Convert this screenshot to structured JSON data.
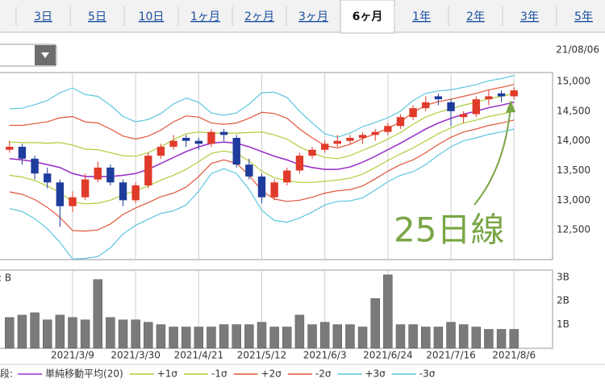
{
  "tabs": [
    "3日",
    "5日",
    "10日",
    "1ヶ月",
    "2ヶ月",
    "3ヶ月",
    "6ヶ月",
    "1年",
    "2年",
    "3年",
    "5年"
  ],
  "selected_tab": 6,
  "date": "21/08/06",
  "annotation": "25日線",
  "legend_prefix": "段:",
  "chart_data": [
    {
      "type": "candlestick",
      "categories": [
        null,
        null,
        null,
        null,
        null,
        "2021/3/9",
        null,
        null,
        null,
        null,
        "2021/3/30",
        null,
        null,
        null,
        null,
        "2021/4/21",
        null,
        null,
        null,
        null,
        "2021/5/12",
        null,
        null,
        null,
        null,
        "2021/6/3",
        null,
        null,
        null,
        null,
        "2021/6/24",
        null,
        null,
        null,
        null,
        "2021/7/16",
        null,
        null,
        null,
        null,
        "2021/8/6"
      ],
      "open": [
        13850,
        13900,
        13700,
        13450,
        13300,
        12900,
        13050,
        13350,
        13550,
        13300,
        13000,
        13250,
        13750,
        13900,
        14050,
        14000,
        13950,
        14150,
        14050,
        13600,
        13400,
        13050,
        13300,
        13500,
        13750,
        13850,
        13950,
        14000,
        14050,
        14100,
        14150,
        14250,
        14400,
        14550,
        14750,
        14650,
        14400,
        14450,
        14700,
        14800,
        14750
      ],
      "high": [
        14000,
        13950,
        13750,
        13550,
        13350,
        13150,
        13450,
        13650,
        13600,
        13350,
        13300,
        13800,
        13950,
        14100,
        14100,
        14050,
        14200,
        14200,
        14100,
        13700,
        13450,
        13350,
        13550,
        13800,
        13900,
        14000,
        14100,
        14100,
        14150,
        14200,
        14300,
        14450,
        14600,
        14750,
        14800,
        14700,
        14500,
        14750,
        14850,
        14850,
        14900
      ],
      "low": [
        13800,
        13600,
        13350,
        13200,
        12550,
        12800,
        13000,
        13300,
        13250,
        12900,
        12950,
        13200,
        13700,
        13850,
        13900,
        13850,
        13900,
        14000,
        13550,
        13350,
        12950,
        13000,
        13250,
        13450,
        13700,
        13800,
        13900,
        13950,
        13950,
        14000,
        14100,
        14200,
        14350,
        14500,
        14600,
        14250,
        14300,
        14400,
        14600,
        14650,
        14700
      ],
      "close": [
        13900,
        13700,
        13450,
        13300,
        12900,
        13050,
        13350,
        13550,
        13300,
        13000,
        13250,
        13750,
        13900,
        14000,
        14000,
        13950,
        14150,
        14100,
        13600,
        13400,
        13050,
        13300,
        13500,
        13750,
        13850,
        13950,
        14000,
        14050,
        14100,
        14150,
        14250,
        14400,
        14550,
        14650,
        14700,
        14500,
        14450,
        14700,
        14750,
        14750,
        14850
      ],
      "up_color": "#e03a2a",
      "down_color": "#1e3c9c",
      "series": [
        {
          "name": "単純移動平均(20)",
          "color": "#9b34c8",
          "values": [
            13700,
            13680,
            13650,
            13600,
            13550,
            13450,
            13400,
            13400,
            13400,
            13420,
            13450,
            13520,
            13620,
            13720,
            13820,
            13900,
            13960,
            13980,
            13960,
            13900,
            13820,
            13740,
            13680,
            13600,
            13550,
            13520,
            13520,
            13560,
            13640,
            13740,
            13850,
            13960,
            14080,
            14200,
            14300,
            14380,
            14450,
            14500,
            14560,
            14600,
            14650
          ]
        },
        {
          "name": "+1σ",
          "color": "#b2cc3a",
          "values": [
            13980,
            13970,
            13970,
            13960,
            13970,
            13930,
            13860,
            13850,
            13800,
            13750,
            13740,
            13800,
            13900,
            14020,
            14120,
            14150,
            14130,
            14130,
            14130,
            14140,
            14150,
            14100,
            14030,
            13900,
            13800,
            13720,
            13700,
            13750,
            13840,
            13930,
            14030,
            14140,
            14280,
            14400,
            14480,
            14540,
            14600,
            14650,
            14710,
            14750,
            14800
          ]
        },
        {
          "name": "-1σ",
          "color": "#b2cc3a",
          "values": [
            13420,
            13390,
            13330,
            13240,
            13130,
            12970,
            12940,
            12950,
            13000,
            13090,
            13160,
            13240,
            13340,
            13420,
            13520,
            13650,
            13790,
            13830,
            13790,
            13660,
            13490,
            13380,
            13330,
            13300,
            13300,
            13320,
            13340,
            13370,
            13440,
            13550,
            13670,
            13780,
            13880,
            14000,
            14120,
            14220,
            14300,
            14350,
            14410,
            14450,
            14500
          ]
        },
        {
          "name": "+2σ",
          "color": "#e0573a",
          "values": [
            14260,
            14260,
            14290,
            14320,
            14390,
            14410,
            14320,
            14300,
            14200,
            14080,
            14030,
            14080,
            14180,
            14320,
            14420,
            14400,
            14300,
            14280,
            14300,
            14380,
            14480,
            14460,
            14380,
            14200,
            14050,
            13920,
            13880,
            13940,
            14040,
            14120,
            14210,
            14320,
            14480,
            14600,
            14660,
            14700,
            14750,
            14800,
            14860,
            14900,
            14950
          ]
        },
        {
          "name": "-2σ",
          "color": "#e0573a",
          "values": [
            13140,
            13100,
            13010,
            12880,
            12710,
            12490,
            12480,
            12500,
            12600,
            12760,
            12870,
            12960,
            13060,
            13120,
            13220,
            13400,
            13620,
            13680,
            13620,
            13420,
            13160,
            13020,
            12980,
            13000,
            13050,
            13120,
            13160,
            13180,
            13240,
            13360,
            13490,
            13600,
            13680,
            13800,
            13940,
            14060,
            14150,
            14200,
            14260,
            14300,
            14350
          ]
        },
        {
          "name": "+3σ",
          "color": "#5cc6dc",
          "values": [
            14540,
            14550,
            14610,
            14680,
            14810,
            14890,
            14780,
            14750,
            14600,
            14410,
            14320,
            14360,
            14460,
            14620,
            14720,
            14650,
            14470,
            14430,
            14470,
            14620,
            14810,
            14820,
            14730,
            14500,
            14300,
            14120,
            14060,
            14130,
            14240,
            14310,
            14390,
            14500,
            14680,
            14800,
            14840,
            14860,
            14900,
            14950,
            15010,
            15050,
            15100
          ]
        },
        {
          "name": "-3σ",
          "color": "#5cc6dc",
          "values": [
            12860,
            12810,
            12690,
            12520,
            12290,
            12010,
            12020,
            12050,
            12200,
            12430,
            12580,
            12680,
            12780,
            12820,
            12920,
            13150,
            13450,
            13530,
            13450,
            13180,
            12830,
            12660,
            12630,
            12700,
            12800,
            12920,
            12980,
            12990,
            13040,
            13170,
            13310,
            13420,
            13480,
            13600,
            13760,
            13900,
            14000,
            14050,
            14110,
            14150,
            14200
          ]
        }
      ],
      "ylim": [
        12000,
        15150
      ],
      "yticks": [
        {
          "value": 12500,
          "label": "12,500"
        },
        {
          "value": 13000,
          "label": "13,000"
        },
        {
          "value": 13500,
          "label": "13,500"
        },
        {
          "value": 14000,
          "label": "14,000"
        },
        {
          "value": 14500,
          "label": "14,500"
        },
        {
          "value": 15000,
          "label": "15,000"
        }
      ],
      "grid": true
    },
    {
      "type": "bar",
      "y_label": ": B",
      "categories": [
        null,
        null,
        null,
        null,
        null,
        "2021/3/9",
        null,
        null,
        null,
        null,
        "2021/3/30",
        null,
        null,
        null,
        null,
        "2021/4/21",
        null,
        null,
        null,
        null,
        "2021/5/12",
        null,
        null,
        null,
        null,
        "2021/6/3",
        null,
        null,
        null,
        null,
        "2021/6/24",
        null,
        null,
        null,
        null,
        "2021/7/16",
        null,
        null,
        null,
        null,
        "2021/8/6"
      ],
      "values": [
        1.3,
        1.4,
        1.5,
        1.2,
        1.4,
        1.3,
        1.2,
        2.9,
        1.3,
        1.2,
        1.2,
        1.1,
        1.0,
        0.9,
        0.9,
        0.9,
        0.9,
        1.0,
        1.0,
        1.0,
        1.1,
        0.9,
        0.9,
        1.4,
        1.0,
        1.1,
        1.0,
        1.0,
        0.9,
        2.1,
        3.1,
        1.0,
        1.0,
        0.9,
        0.9,
        1.1,
        1.0,
        0.9,
        0.8,
        0.8,
        0.8
      ],
      "color": "#7a7a7a",
      "ylim": [
        0,
        3.3
      ],
      "yticks": [
        {
          "value": 1,
          "label": "1B"
        },
        {
          "value": 2,
          "label": "2B"
        },
        {
          "value": 3,
          "label": "3B"
        }
      ],
      "grid": true
    }
  ]
}
